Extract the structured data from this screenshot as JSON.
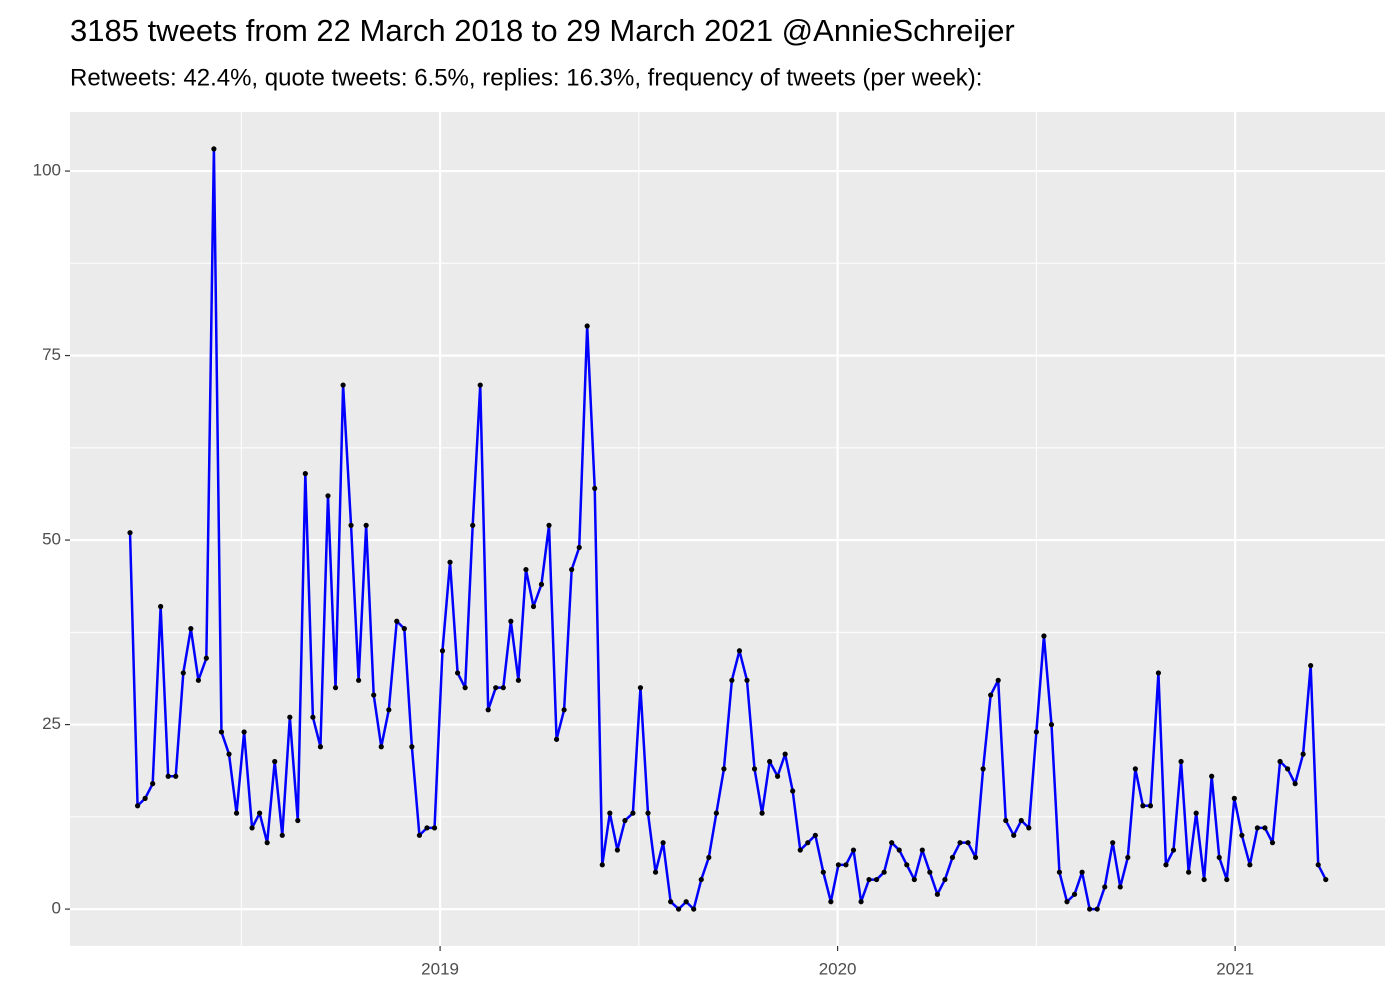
{
  "chart_data": {
    "type": "line",
    "title": "3185 tweets from 22 March 2018 to 29 March 2021 @AnnieSchreijer",
    "subtitle": "Retweets: 42.4%, quote tweets: 6.5%, replies: 16.3%, frequency of tweets (per week):",
    "x": [
      2018.22,
      2018.239,
      2018.258,
      2018.277,
      2018.297,
      2018.316,
      2018.335,
      2018.354,
      2018.373,
      2018.392,
      2018.412,
      2018.431,
      2018.45,
      2018.469,
      2018.488,
      2018.507,
      2018.527,
      2018.546,
      2018.565,
      2018.584,
      2018.603,
      2018.622,
      2018.642,
      2018.661,
      2018.68,
      2018.699,
      2018.718,
      2018.737,
      2018.756,
      2018.776,
      2018.795,
      2018.814,
      2018.833,
      2018.852,
      2018.871,
      2018.891,
      2018.91,
      2018.929,
      2018.948,
      2018.967,
      2018.986,
      2019.006,
      2019.025,
      2019.044,
      2019.063,
      2019.082,
      2019.101,
      2019.121,
      2019.14,
      2019.159,
      2019.178,
      2019.197,
      2019.216,
      2019.235,
      2019.255,
      2019.274,
      2019.293,
      2019.312,
      2019.331,
      2019.35,
      2019.37,
      2019.389,
      2019.408,
      2019.427,
      2019.446,
      2019.465,
      2019.485,
      2019.504,
      2019.523,
      2019.542,
      2019.561,
      2019.58,
      2019.6,
      2019.619,
      2019.638,
      2019.657,
      2019.676,
      2019.695,
      2019.714,
      2019.734,
      2019.753,
      2019.772,
      2019.791,
      2019.81,
      2019.829,
      2019.849,
      2019.868,
      2019.887,
      2019.906,
      2019.925,
      2019.944,
      2019.964,
      2019.983,
      2020.002,
      2020.021,
      2020.04,
      2020.059,
      2020.079,
      2020.098,
      2020.117,
      2020.136,
      2020.155,
      2020.174,
      2020.193,
      2020.213,
      2020.232,
      2020.251,
      2020.27,
      2020.289,
      2020.308,
      2020.328,
      2020.347,
      2020.366,
      2020.385,
      2020.404,
      2020.423,
      2020.443,
      2020.462,
      2020.481,
      2020.5,
      2020.519,
      2020.538,
      2020.558,
      2020.577,
      2020.596,
      2020.615,
      2020.634,
      2020.653,
      2020.672,
      2020.692,
      2020.711,
      2020.73,
      2020.749,
      2020.768,
      2020.787,
      2020.807,
      2020.826,
      2020.845,
      2020.864,
      2020.883,
      2020.902,
      2020.922,
      2020.941,
      2020.96,
      2020.979,
      2020.998,
      2021.017,
      2021.037,
      2021.056,
      2021.075,
      2021.094,
      2021.113,
      2021.132,
      2021.151,
      2021.171,
      2021.19,
      2021.209,
      2021.228
    ],
    "series": [
      {
        "color": "#0000ff",
        "values": [
          51,
          14,
          15,
          17,
          41,
          18,
          18,
          32,
          38,
          31,
          34,
          103,
          24,
          21,
          13,
          24,
          11,
          13,
          9,
          20,
          10,
          26,
          12,
          59,
          26,
          22,
          56,
          30,
          71,
          52,
          31,
          52,
          29,
          22,
          27,
          39,
          38,
          22,
          10,
          11,
          11,
          35,
          47,
          32,
          30,
          52,
          71,
          27,
          30,
          30,
          39,
          31,
          46,
          41,
          44,
          52,
          23,
          27,
          46,
          49,
          79,
          57,
          6,
          13,
          8,
          12,
          13,
          30,
          13,
          5,
          9,
          1,
          0,
          1,
          0,
          4,
          7,
          13,
          19,
          31,
          35,
          31,
          19,
          13,
          20,
          18,
          21,
          16,
          8,
          9,
          10,
          5,
          1,
          6,
          6,
          8,
          1,
          4,
          4,
          5,
          9,
          8,
          6,
          4,
          8,
          5,
          2,
          4,
          7,
          9,
          9,
          7,
          19,
          29,
          31,
          12,
          10,
          12,
          11,
          24,
          37,
          25,
          5,
          1,
          2,
          5,
          0,
          0,
          3,
          9,
          3,
          7,
          19,
          14,
          14,
          32,
          6,
          8,
          20,
          5,
          13,
          4,
          18,
          7,
          4,
          15,
          10,
          6,
          11,
          11,
          9,
          20,
          19,
          17,
          21,
          33,
          6,
          4
        ]
      }
    ],
    "point_color": "#000000",
    "xlim": [
      2018.069,
      2021.377
    ],
    "xticks": [
      2019,
      2020,
      2021
    ],
    "xminor": [
      2018.5,
      2019.5,
      2020.5
    ],
    "ylim": [
      -5,
      108
    ],
    "yticks": [
      0,
      25,
      50,
      75,
      100
    ],
    "yminor": [
      12.5,
      37.5,
      62.5,
      87.5
    ],
    "grid": true
  }
}
